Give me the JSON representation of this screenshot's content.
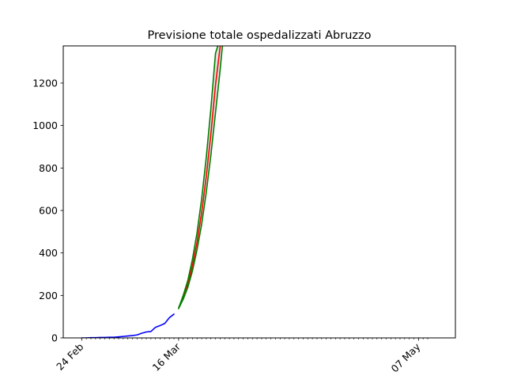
{
  "chart_data": {
    "type": "line",
    "title": "Previsione totale ospedalizzati Abruzzo",
    "xlabel": "",
    "ylabel": "",
    "x_unit": "date",
    "x_year": 2020,
    "xlim": [
      "2020-02-20",
      "2020-05-15"
    ],
    "ylim": [
      0,
      1375
    ],
    "y_ticks": [
      0,
      200,
      400,
      600,
      800,
      1000,
      1200
    ],
    "y_tick_labels": [
      "0",
      "200",
      "400",
      "600",
      "800",
      "1000",
      "1200"
    ],
    "x_major_ticks": [
      {
        "date": "2020-02-24",
        "label": "24 Feb"
      },
      {
        "date": "2020-03-16",
        "label": "16 Mar"
      },
      {
        "date": "2020-05-07",
        "label": "07 May"
      }
    ],
    "x_minor_tick_range": [
      "2020-02-24",
      "2020-05-09"
    ],
    "grid": false,
    "series": [
      {
        "color": "#0000ff",
        "role": "observed",
        "points": [
          [
            "2020-02-24",
            0
          ],
          [
            "2020-02-25",
            0
          ],
          [
            "2020-02-26",
            1
          ],
          [
            "2020-02-27",
            1
          ],
          [
            "2020-02-28",
            2
          ],
          [
            "2020-02-29",
            2
          ],
          [
            "2020-03-01",
            3
          ],
          [
            "2020-03-02",
            3
          ],
          [
            "2020-03-03",
            5
          ],
          [
            "2020-03-04",
            7
          ],
          [
            "2020-03-05",
            9
          ],
          [
            "2020-03-06",
            11
          ],
          [
            "2020-03-07",
            14
          ],
          [
            "2020-03-08",
            22
          ],
          [
            "2020-03-09",
            28
          ],
          [
            "2020-03-10",
            30
          ],
          [
            "2020-03-11",
            50
          ],
          [
            "2020-03-12",
            58
          ],
          [
            "2020-03-13",
            68
          ],
          [
            "2020-03-14",
            95
          ],
          [
            "2020-03-15",
            112
          ]
        ]
      },
      {
        "color": "#ff0000",
        "role": "forecast",
        "points": [
          [
            "2020-03-16",
            140
          ],
          [
            "2020-03-17",
            190
          ],
          [
            "2020-03-18",
            252
          ],
          [
            "2020-03-19",
            340
          ],
          [
            "2020-03-20",
            450
          ],
          [
            "2020-03-21",
            590
          ],
          [
            "2020-03-22",
            760
          ],
          [
            "2020-03-23",
            960
          ],
          [
            "2020-03-24",
            1190
          ],
          [
            "2020-03-25",
            1370
          ]
        ]
      },
      {
        "color": "#008000",
        "role": "upper bound",
        "points": [
          [
            "2020-03-16",
            140
          ],
          [
            "2020-03-17",
            200
          ],
          [
            "2020-03-18",
            270
          ],
          [
            "2020-03-19",
            370
          ],
          [
            "2020-03-20",
            495
          ],
          [
            "2020-03-21",
            655
          ],
          [
            "2020-03-22",
            850
          ],
          [
            "2020-03-23",
            1080
          ],
          [
            "2020-03-24",
            1340
          ],
          [
            "2020-03-24.5",
            1375
          ]
        ]
      },
      {
        "color": "#008000",
        "role": "lower bound",
        "points": [
          [
            "2020-03-16",
            138
          ],
          [
            "2020-03-17",
            182
          ],
          [
            "2020-03-18",
            238
          ],
          [
            "2020-03-19",
            315
          ],
          [
            "2020-03-20",
            415
          ],
          [
            "2020-03-21",
            535
          ],
          [
            "2020-03-22",
            685
          ],
          [
            "2020-03-23",
            860
          ],
          [
            "2020-03-24",
            1060
          ],
          [
            "2020-03-25",
            1260
          ],
          [
            "2020-03-25.5",
            1375
          ]
        ]
      }
    ],
    "band": {
      "fill": "#d9d9d9",
      "between": [
        "upper bound",
        "lower bound"
      ]
    }
  }
}
